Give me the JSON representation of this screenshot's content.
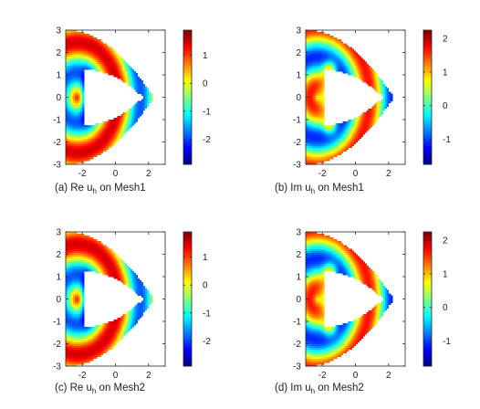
{
  "chart_data": [
    {
      "type": "heatmap",
      "caption": {
        "prefix": "(a) Re u",
        "sub": "h",
        "suffix": " on Mesh1"
      },
      "xlim": [
        -3,
        3
      ],
      "ylim": [
        -3,
        3
      ],
      "xticks": [
        -2,
        0,
        2
      ],
      "yticks": [
        -3,
        -2,
        -1,
        0,
        1,
        2,
        3
      ],
      "colorbar": {
        "min": -2.9,
        "max": 1.9,
        "ticks": [
          -2,
          -1,
          0,
          1
        ]
      },
      "field": {
        "kind": "real",
        "min": -2.9,
        "max": 1.9
      }
    },
    {
      "type": "heatmap",
      "caption": {
        "prefix": "(b) Im u",
        "sub": "h",
        "suffix": " on Mesh1"
      },
      "xlim": [
        -3,
        3
      ],
      "ylim": [
        -3,
        3
      ],
      "xticks": [
        -2,
        0,
        2
      ],
      "yticks": [
        -3,
        -2,
        -1,
        0,
        1,
        2,
        3
      ],
      "colorbar": {
        "min": -1.75,
        "max": 2.25,
        "ticks": [
          -1,
          0,
          1,
          2
        ]
      },
      "field": {
        "kind": "imag",
        "min": -1.75,
        "max": 2.25
      }
    },
    {
      "type": "heatmap",
      "caption": {
        "prefix": "(c) Re u",
        "sub": "h",
        "suffix": " on Mesh2"
      },
      "xlim": [
        -3,
        3
      ],
      "ylim": [
        -3,
        3
      ],
      "xticks": [
        -2,
        0,
        2
      ],
      "yticks": [
        -3,
        -2,
        -1,
        0,
        1,
        2,
        3
      ],
      "colorbar": {
        "min": -2.9,
        "max": 1.9,
        "ticks": [
          -2,
          -1,
          0,
          1
        ]
      },
      "field": {
        "kind": "real",
        "min": -2.9,
        "max": 1.9
      }
    },
    {
      "type": "heatmap",
      "caption": {
        "prefix": "(d) Im u",
        "sub": "h",
        "suffix": " on Mesh2"
      },
      "xlim": [
        -3,
        3
      ],
      "ylim": [
        -3,
        3
      ],
      "xticks": [
        -2,
        0,
        2
      ],
      "yticks": [
        -3,
        -2,
        -1,
        0,
        1,
        2,
        3
      ],
      "colorbar": {
        "min": -1.75,
        "max": 2.25,
        "ticks": [
          -1,
          0,
          1,
          2
        ]
      },
      "field": {
        "kind": "imag",
        "min": -1.75,
        "max": 2.25
      }
    }
  ],
  "colors": {
    "colormap": "jet",
    "axis": "#262626",
    "background": "#ffffff"
  }
}
